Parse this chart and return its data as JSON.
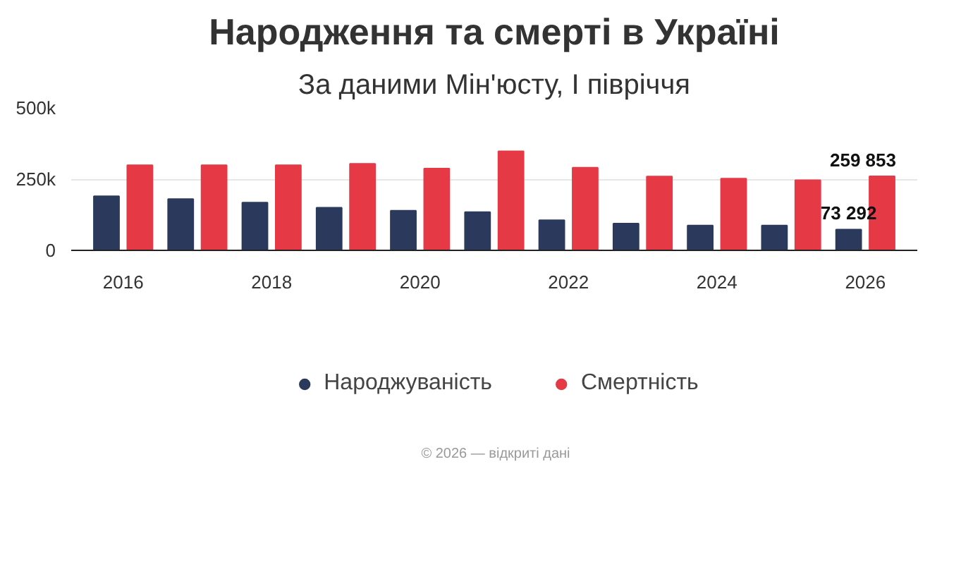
{
  "chart_data": {
    "type": "bar",
    "title": "Народження та смерті в Україні",
    "subtitle": "За даними Мін'юсту, І півріччя",
    "x": [
      2016,
      2017,
      2018,
      2019,
      2020,
      2021,
      2022,
      2023,
      2024,
      2025,
      2026
    ],
    "series": [
      {
        "name": "Народжуваність",
        "color": "#2b3a5c",
        "values": [
          190000,
          180000,
          168000,
          150000,
          139000,
          134000,
          106000,
          94000,
          87000,
          87000,
          73292
        ],
        "value_labels": [
          null,
          null,
          null,
          null,
          null,
          null,
          null,
          null,
          null,
          null,
          "73 292"
        ]
      },
      {
        "name": "Смертність",
        "color": "#e63946",
        "values": [
          299000,
          299000,
          299000,
          304000,
          287000,
          348000,
          290000,
          259000,
          252000,
          246000,
          259853
        ],
        "value_labels": [
          null,
          null,
          null,
          null,
          null,
          null,
          null,
          null,
          null,
          null,
          "259 853"
        ]
      }
    ],
    "xlim": [
      2015.3,
      2026.7
    ],
    "xticks": [
      2016,
      2018,
      2020,
      2022,
      2024,
      2026
    ],
    "ylim": [
      0,
      500000
    ],
    "yticks": [
      {
        "value": 0,
        "label": "0"
      },
      {
        "value": 250000,
        "label": "250k"
      },
      {
        "value": 500000,
        "label": "500k"
      }
    ],
    "grid": "y",
    "legend": "bottom",
    "annotations": [
      "© 2026 — відкриті дані"
    ]
  }
}
